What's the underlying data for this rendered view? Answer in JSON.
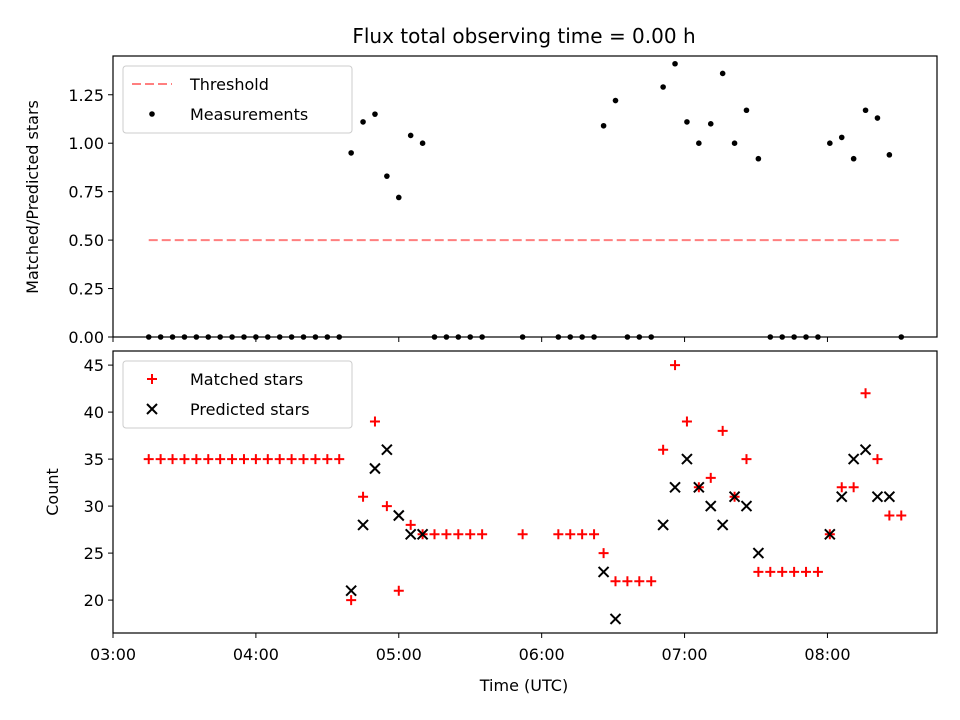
{
  "chart_data": [
    {
      "type": "scatter",
      "title": "Flux total observing time = 0.00 h",
      "xlabel": "",
      "ylabel": "Matched/Predicted stars",
      "xlim": [
        "03:00",
        "08:46"
      ],
      "ylim": [
        0.0,
        1.45
      ],
      "yticks": [
        "0.00",
        "0.25",
        "0.50",
        "0.75",
        "1.00",
        "1.25"
      ],
      "legend_position": "upper-left",
      "threshold": {
        "name": "Threshold",
        "color": "#ff7f7f",
        "style": "dashed",
        "x": [
          "03:15",
          "08:31"
        ],
        "y": 0.5
      },
      "series": [
        {
          "name": "Measurements",
          "color": "#000000",
          "marker": "dot",
          "points": [
            [
              "03:15",
              0.0
            ],
            [
              "03:20",
              0.0
            ],
            [
              "03:25",
              0.0
            ],
            [
              "03:30",
              0.0
            ],
            [
              "03:35",
              0.0
            ],
            [
              "03:40",
              0.0
            ],
            [
              "03:45",
              0.0
            ],
            [
              "03:50",
              0.0
            ],
            [
              "03:55",
              0.0
            ],
            [
              "04:00",
              0.0
            ],
            [
              "04:05",
              0.0
            ],
            [
              "04:10",
              0.0
            ],
            [
              "04:15",
              0.0
            ],
            [
              "04:20",
              0.0
            ],
            [
              "04:25",
              0.0
            ],
            [
              "04:30",
              0.0
            ],
            [
              "04:35",
              0.0
            ],
            [
              "04:40",
              0.95
            ],
            [
              "04:45",
              1.11
            ],
            [
              "04:50",
              1.15
            ],
            [
              "04:55",
              0.83
            ],
            [
              "05:00",
              0.72
            ],
            [
              "05:05",
              1.04
            ],
            [
              "05:10",
              1.0
            ],
            [
              "05:15",
              0.0
            ],
            [
              "05:20",
              0.0
            ],
            [
              "05:25",
              0.0
            ],
            [
              "05:30",
              0.0
            ],
            [
              "05:35",
              0.0
            ],
            [
              "05:52",
              0.0
            ],
            [
              "06:07",
              0.0
            ],
            [
              "06:12",
              0.0
            ],
            [
              "06:17",
              0.0
            ],
            [
              "06:22",
              0.0
            ],
            [
              "06:26",
              1.09
            ],
            [
              "06:31",
              1.22
            ],
            [
              "06:36",
              0.0
            ],
            [
              "06:41",
              0.0
            ],
            [
              "06:46",
              0.0
            ],
            [
              "06:51",
              1.29
            ],
            [
              "06:56",
              1.41
            ],
            [
              "07:01",
              1.11
            ],
            [
              "07:06",
              1.0
            ],
            [
              "07:11",
              1.1
            ],
            [
              "07:16",
              1.36
            ],
            [
              "07:21",
              1.0
            ],
            [
              "07:26",
              1.17
            ],
            [
              "07:31",
              0.92
            ],
            [
              "07:36",
              0.0
            ],
            [
              "07:41",
              0.0
            ],
            [
              "07:46",
              0.0
            ],
            [
              "07:51",
              0.0
            ],
            [
              "07:56",
              0.0
            ],
            [
              "08:01",
              1.0
            ],
            [
              "08:06",
              1.03
            ],
            [
              "08:11",
              0.92
            ],
            [
              "08:16",
              1.17
            ],
            [
              "08:21",
              1.13
            ],
            [
              "08:26",
              0.94
            ],
            [
              "08:31",
              0.0
            ]
          ]
        }
      ]
    },
    {
      "type": "scatter",
      "title": "",
      "xlabel": "Time (UTC)",
      "ylabel": "Count",
      "xlim": [
        "03:00",
        "08:46"
      ],
      "ylim": [
        16.5,
        46.5
      ],
      "xticks": [
        "03:00",
        "04:00",
        "05:00",
        "06:00",
        "07:00",
        "08:00"
      ],
      "yticks": [
        "20",
        "25",
        "30",
        "35",
        "40",
        "45"
      ],
      "legend_position": "upper-left",
      "series": [
        {
          "name": "Matched stars",
          "color": "#ff0000",
          "marker": "plus",
          "points": [
            [
              "03:15",
              35
            ],
            [
              "03:20",
              35
            ],
            [
              "03:25",
              35
            ],
            [
              "03:30",
              35
            ],
            [
              "03:35",
              35
            ],
            [
              "03:40",
              35
            ],
            [
              "03:45",
              35
            ],
            [
              "03:50",
              35
            ],
            [
              "03:55",
              35
            ],
            [
              "04:00",
              35
            ],
            [
              "04:05",
              35
            ],
            [
              "04:10",
              35
            ],
            [
              "04:15",
              35
            ],
            [
              "04:20",
              35
            ],
            [
              "04:25",
              35
            ],
            [
              "04:30",
              35
            ],
            [
              "04:35",
              35
            ],
            [
              "04:40",
              20
            ],
            [
              "04:45",
              31
            ],
            [
              "04:50",
              39
            ],
            [
              "04:55",
              30
            ],
            [
              "05:00",
              21
            ],
            [
              "05:05",
              28
            ],
            [
              "05:10",
              27
            ],
            [
              "05:15",
              27
            ],
            [
              "05:20",
              27
            ],
            [
              "05:25",
              27
            ],
            [
              "05:30",
              27
            ],
            [
              "05:35",
              27
            ],
            [
              "05:52",
              27
            ],
            [
              "06:07",
              27
            ],
            [
              "06:12",
              27
            ],
            [
              "06:17",
              27
            ],
            [
              "06:22",
              27
            ],
            [
              "06:26",
              25
            ],
            [
              "06:31",
              22
            ],
            [
              "06:36",
              22
            ],
            [
              "06:41",
              22
            ],
            [
              "06:46",
              22
            ],
            [
              "06:51",
              36
            ],
            [
              "06:56",
              45
            ],
            [
              "07:01",
              39
            ],
            [
              "07:06",
              32
            ],
            [
              "07:11",
              33
            ],
            [
              "07:16",
              38
            ],
            [
              "07:21",
              31
            ],
            [
              "07:26",
              35
            ],
            [
              "07:31",
              23
            ],
            [
              "07:36",
              23
            ],
            [
              "07:41",
              23
            ],
            [
              "07:46",
              23
            ],
            [
              "07:51",
              23
            ],
            [
              "07:56",
              23
            ],
            [
              "08:01",
              27
            ],
            [
              "08:06",
              32
            ],
            [
              "08:11",
              32
            ],
            [
              "08:16",
              42
            ],
            [
              "08:21",
              35
            ],
            [
              "08:26",
              29
            ],
            [
              "08:31",
              29
            ]
          ]
        },
        {
          "name": "Predicted stars",
          "color": "#000000",
          "marker": "x",
          "points": [
            [
              "04:40",
              21
            ],
            [
              "04:45",
              28
            ],
            [
              "04:50",
              34
            ],
            [
              "04:55",
              36
            ],
            [
              "05:00",
              29
            ],
            [
              "05:05",
              27
            ],
            [
              "05:10",
              27
            ],
            [
              "06:26",
              23
            ],
            [
              "06:31",
              18
            ],
            [
              "06:51",
              28
            ],
            [
              "06:56",
              32
            ],
            [
              "07:01",
              35
            ],
            [
              "07:06",
              32
            ],
            [
              "07:11",
              30
            ],
            [
              "07:16",
              28
            ],
            [
              "07:21",
              31
            ],
            [
              "07:26",
              30
            ],
            [
              "07:31",
              25
            ],
            [
              "08:01",
              27
            ],
            [
              "08:06",
              31
            ],
            [
              "08:11",
              35
            ],
            [
              "08:16",
              36
            ],
            [
              "08:21",
              31
            ],
            [
              "08:26",
              31
            ]
          ]
        }
      ]
    }
  ]
}
